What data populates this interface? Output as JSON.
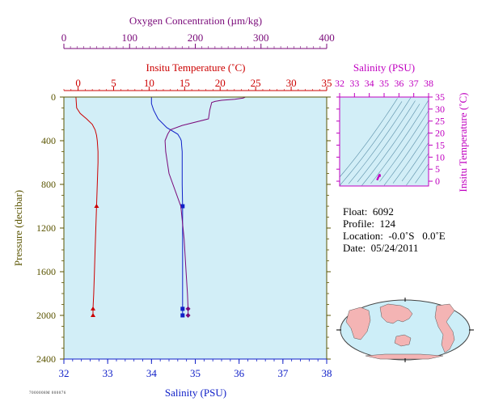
{
  "colors": {
    "panel_fill": "#d2eef7",
    "axis_pressure": "#5a5400",
    "oxygen": "#7a0a7a",
    "temperature": "#cc0000",
    "salinity": "#1020c8",
    "ts_axis": "#c000c0",
    "ts_lines": "#5a8fa8",
    "land": "#f4b4b4",
    "ocean": "#cdeef8"
  },
  "labels": {
    "oxygen_axis": "Oxygen Concentration (µm/kg)",
    "temp_axis": "Insitu Temperature (˚C)",
    "salinity_axis": "Salinity (PSU)",
    "pressure_axis": "Pressure (decibar)",
    "ts_salinity_axis": "Salinity (PSU)",
    "ts_temp_axis": "Insitu Temperature (˚C)",
    "stamp": "7000008M 000076"
  },
  "info": {
    "float": "Float:  6092",
    "profile": "Profile:  124",
    "location": "Location:  -0.0˚S   0.0˚E",
    "date": "Date:  05/24/2011"
  },
  "chart_data": [
    {
      "type": "line",
      "name": "profile",
      "ylabel": "Pressure (decibar)",
      "ylim": [
        2400,
        0
      ],
      "yticks": [
        0,
        400,
        800,
        1200,
        1600,
        2000,
        2400
      ],
      "axes": {
        "oxygen": {
          "label": "Oxygen Concentration (µm/kg)",
          "lim": [
            0,
            400
          ],
          "ticks": [
            0,
            100,
            200,
            300,
            400
          ]
        },
        "temperature": {
          "label": "Insitu Temperature (˚C)",
          "lim": [
            -2,
            35
          ],
          "ticks": [
            0,
            5,
            10,
            15,
            20,
            25,
            30,
            35
          ]
        },
        "salinity": {
          "label": "Salinity (PSU)",
          "lim": [
            32,
            38
          ],
          "ticks": [
            32,
            33,
            34,
            35,
            36,
            37,
            38
          ]
        }
      },
      "series": [
        {
          "key": "temperature",
          "pressure": [
            0,
            100,
            150,
            200,
            250,
            300,
            350,
            400,
            500,
            600,
            800,
            1000,
            1200,
            1400,
            1600,
            1800,
            1940,
            2000
          ],
          "values": [
            -0.3,
            -0.2,
            0.3,
            1.2,
            2.0,
            2.4,
            2.6,
            2.7,
            2.8,
            2.8,
            2.7,
            2.6,
            2.5,
            2.4,
            2.3,
            2.2,
            2.1,
            2.1
          ],
          "markers_at": [
            1000,
            1940,
            2000
          ],
          "marker": "triangle"
        },
        {
          "key": "salinity",
          "pressure": [
            0,
            60,
            120,
            200,
            280,
            340,
            380,
            400,
            450,
            500,
            600,
            800,
            1000,
            1200,
            1400,
            1600,
            1800,
            1940,
            2000
          ],
          "values": [
            34.0,
            34.0,
            34.05,
            34.15,
            34.35,
            34.6,
            34.66,
            34.68,
            34.69,
            34.7,
            34.7,
            34.7,
            34.71,
            34.71,
            34.71,
            34.71,
            34.71,
            34.71,
            34.71
          ],
          "markers_at": [
            1000,
            1940,
            2000
          ],
          "marker": "square"
        },
        {
          "key": "oxygen",
          "pressure": [
            0,
            10,
            20,
            30,
            40,
            50,
            120,
            200,
            260,
            300,
            340,
            400,
            500,
            700,
            1000,
            1300,
            1600,
            1800,
            1940,
            2000
          ],
          "values": [
            276,
            273,
            260,
            240,
            230,
            225,
            222,
            220,
            180,
            162,
            158,
            154,
            155,
            160,
            178,
            183,
            186,
            188,
            189,
            189
          ],
          "markers_at": [
            1940,
            2000
          ],
          "marker": "diamond"
        }
      ]
    },
    {
      "type": "scatter",
      "name": "ts-diagram",
      "xlabel": "Salinity (PSU)",
      "ylabel": "Insitu Temperature (˚C)",
      "xlim": [
        32,
        38
      ],
      "ylim": [
        -2,
        35
      ],
      "xticks": [
        32,
        33,
        34,
        35,
        36,
        37,
        38
      ],
      "yticks": [
        0,
        5,
        10,
        15,
        20,
        25,
        30,
        35
      ],
      "density_contours": [
        20,
        21,
        22,
        23,
        24,
        25,
        26,
        27,
        28,
        29,
        30,
        31
      ],
      "x": [
        34.55,
        34.6,
        34.65,
        34.7,
        34.71
      ],
      "y": [
        0.8,
        1.5,
        2.2,
        2.6,
        2.2
      ]
    }
  ]
}
